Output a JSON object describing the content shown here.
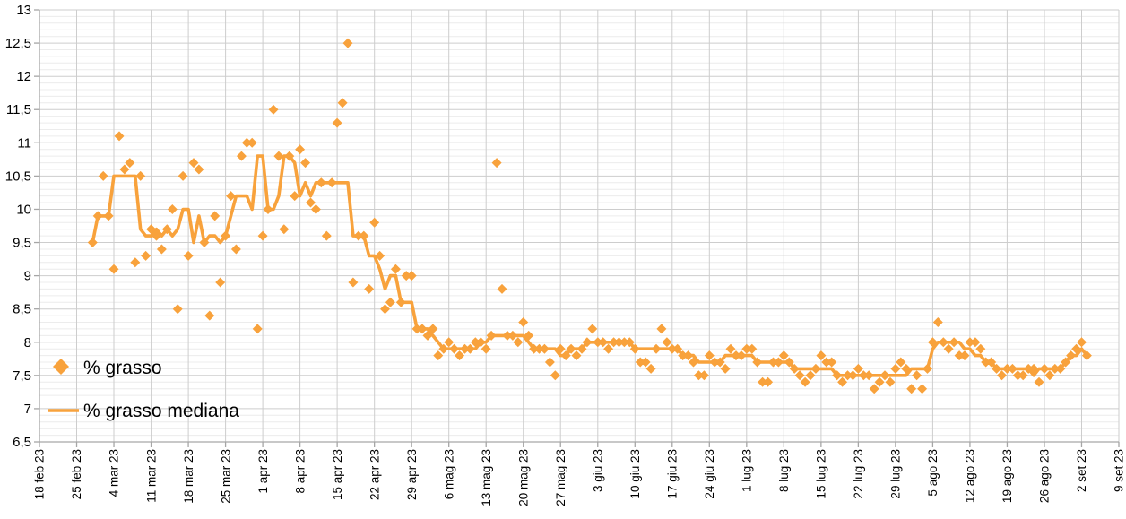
{
  "chart_data": {
    "type": "scatter",
    "title": "",
    "legend": {
      "position": "inside-left-bottom",
      "entries": [
        "% grasso",
        "% grasso mediana"
      ]
    },
    "x_axis": {
      "tick_labels": [
        "18 feb 23",
        "25 feb 23",
        "4 mar 23",
        "11 mar 23",
        "18 mar 23",
        "25 mar 23",
        "1 apr 23",
        "8 apr 23",
        "15 apr 23",
        "22 apr 23",
        "29 apr 23",
        "6 mag 23",
        "13 mag 23",
        "20 mag 23",
        "27 mag 23",
        "3 giu 23",
        "10 giu 23",
        "17 giu 23",
        "24 giu 23",
        "1 lug 23",
        "8 lug 23",
        "15 lug 23",
        "22 lug 23",
        "29 lug 23",
        "5 ago 23",
        "12 ago 23",
        "19 ago 23",
        "26 ago 23",
        "2 set 23",
        "9 set 23"
      ],
      "tick_interval_days": 7
    },
    "y_axis": {
      "min": 6.5,
      "max": 13,
      "major_step": 0.5,
      "minor_step": 0.1,
      "tick_labels": [
        "6,5",
        "7",
        "7,5",
        "8",
        "8,5",
        "9",
        "9,5",
        "10",
        "10,5",
        "11",
        "11,5",
        "12",
        "12,5",
        "13"
      ],
      "decimal_separator": ","
    },
    "grid": {
      "major_color": "#CDCDCD",
      "minor_color": "#ECECEC",
      "vertical_color": "#CDCDCD",
      "axis_color": "#A6A6A6"
    },
    "accent_color": "#F8A23C",
    "series": [
      {
        "name": "% grasso",
        "type": "scatter",
        "marker": "diamond",
        "color": "#F8A23C",
        "sampling": "daily",
        "start_date": "28 feb 23",
        "start_day_offset_from_first_tick": 10,
        "values": [
          9.5,
          9.9,
          10.5,
          9.9,
          9.1,
          11.1,
          10.6,
          10.7,
          9.2,
          10.5,
          9.3,
          9.7,
          9.6,
          9.4,
          9.7,
          10.0,
          8.5,
          10.5,
          9.3,
          10.7,
          10.6,
          9.5,
          8.4,
          9.9,
          8.9,
          9.6,
          10.2,
          9.4,
          10.8,
          11.0,
          11.0,
          8.2,
          9.6,
          10.0,
          11.5,
          10.8,
          9.7,
          10.8,
          10.2,
          10.9,
          10.7,
          10.1,
          10.0,
          10.4,
          9.6,
          10.4,
          11.3,
          11.6,
          12.5,
          8.9,
          9.6,
          9.6,
          8.8,
          9.8,
          9.3,
          8.5,
          8.6,
          9.1,
          8.6,
          9.0,
          9.0,
          8.2,
          8.2,
          8.1,
          8.2,
          7.8,
          7.9,
          8.0,
          7.9,
          7.8,
          7.9,
          7.9,
          8.0,
          8.0,
          7.9,
          8.1,
          10.7,
          8.8,
          8.1,
          8.1,
          8.0,
          8.3,
          8.1,
          7.9,
          7.9,
          7.9,
          7.7,
          7.5,
          7.9,
          7.8,
          7.9,
          7.8,
          7.9,
          8.0,
          8.2,
          8.0,
          8.0,
          7.9,
          8.0,
          8.0,
          8.0,
          8.0,
          7.9,
          7.7,
          7.7,
          7.6,
          7.9,
          8.2,
          8.0,
          7.9,
          7.9,
          7.8,
          7.8,
          7.7,
          7.5,
          7.5,
          7.8,
          7.7,
          7.7,
          7.6,
          7.9,
          7.8,
          7.8,
          7.9,
          7.9,
          7.7,
          7.4,
          7.4,
          7.7,
          7.7,
          7.8,
          7.7,
          7.6,
          7.5,
          7.4,
          7.5,
          7.6,
          7.8,
          7.7,
          7.7,
          7.5,
          7.4,
          7.5,
          7.5,
          7.6,
          7.5,
          7.5,
          7.3,
          7.4,
          7.5,
          7.4,
          7.6,
          7.7,
          7.6,
          7.3,
          7.5,
          7.3,
          7.6,
          8.0,
          8.3,
          8.0,
          7.9,
          8.0,
          7.8,
          7.8,
          8.0,
          8.0,
          7.9,
          7.7,
          7.7,
          7.6,
          7.5,
          7.6,
          7.6,
          7.5,
          7.5,
          7.6,
          7.6,
          7.4,
          7.6,
          7.5,
          7.6,
          7.6,
          7.7,
          7.8,
          7.9,
          8.0,
          7.8
        ]
      },
      {
        "name": "% grasso mediana",
        "type": "line",
        "color": "#F8A23C",
        "derivation": "rolling_median_7_centered_of_series_0"
      }
    ]
  }
}
